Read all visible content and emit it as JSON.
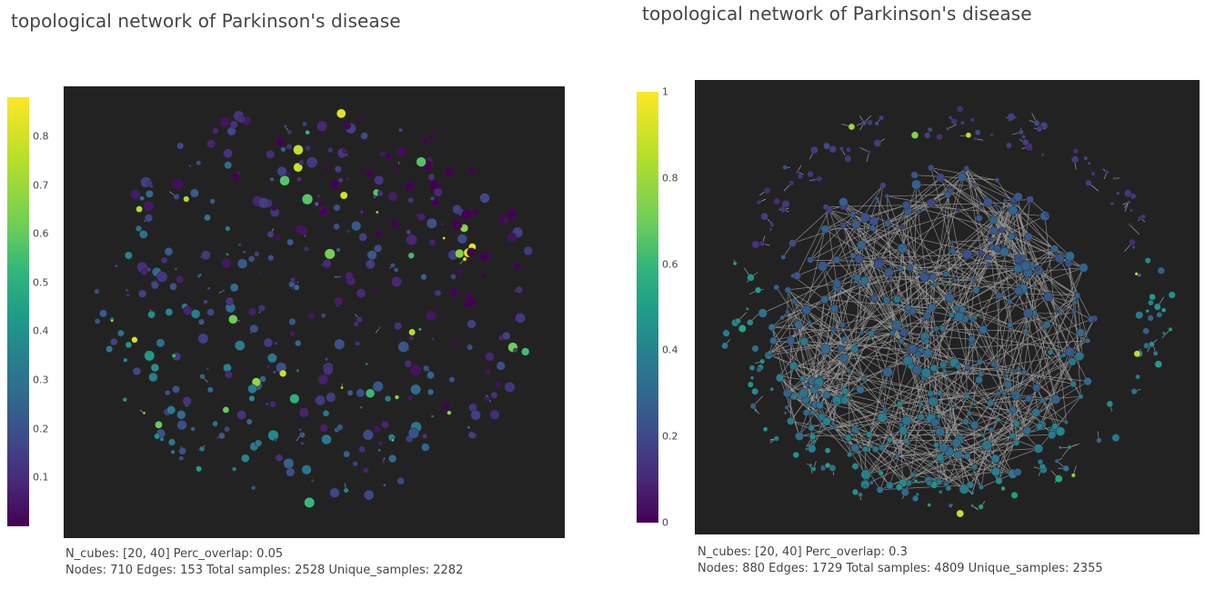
{
  "chart_data": [
    {
      "type": "network",
      "title": "topological network of Parkinson's disease",
      "colorscale": "viridis",
      "colorbar": {
        "range": [
          0,
          0.88
        ],
        "ticks": [
          "0.1",
          "0.2",
          "0.3",
          "0.4",
          "0.5",
          "0.6",
          "0.7",
          "0.8"
        ]
      },
      "caption": {
        "line1": "N_cubes: [20, 40] Perc_overlap: 0.05",
        "line2": "Nodes: 710 Edges: 153 Total samples: 2528 Unique_samples: 2282"
      },
      "stats": {
        "n_cubes": [
          20,
          40
        ],
        "perc_overlap": 0.05,
        "nodes": 710,
        "edges": 153,
        "total_samples": 2528,
        "unique_samples": 2282
      },
      "background": "#222222"
    },
    {
      "type": "network",
      "title": "topological network of Parkinson's disease",
      "colorscale": "viridis",
      "colorbar": {
        "range": [
          0,
          1
        ],
        "ticks": [
          "0",
          "0.2",
          "0.4",
          "0.6",
          "0.8",
          "1"
        ]
      },
      "caption": {
        "line1": "N_cubes: [20, 40] Perc_overlap: 0.3",
        "line2": "Nodes: 880 Edges: 1729 Total samples: 4809 Unique_samples: 2355"
      },
      "stats": {
        "n_cubes": [
          20,
          40
        ],
        "perc_overlap": 0.3,
        "nodes": 880,
        "edges": 1729,
        "total_samples": 4809,
        "unique_samples": 2355
      },
      "background": "#222222"
    }
  ]
}
